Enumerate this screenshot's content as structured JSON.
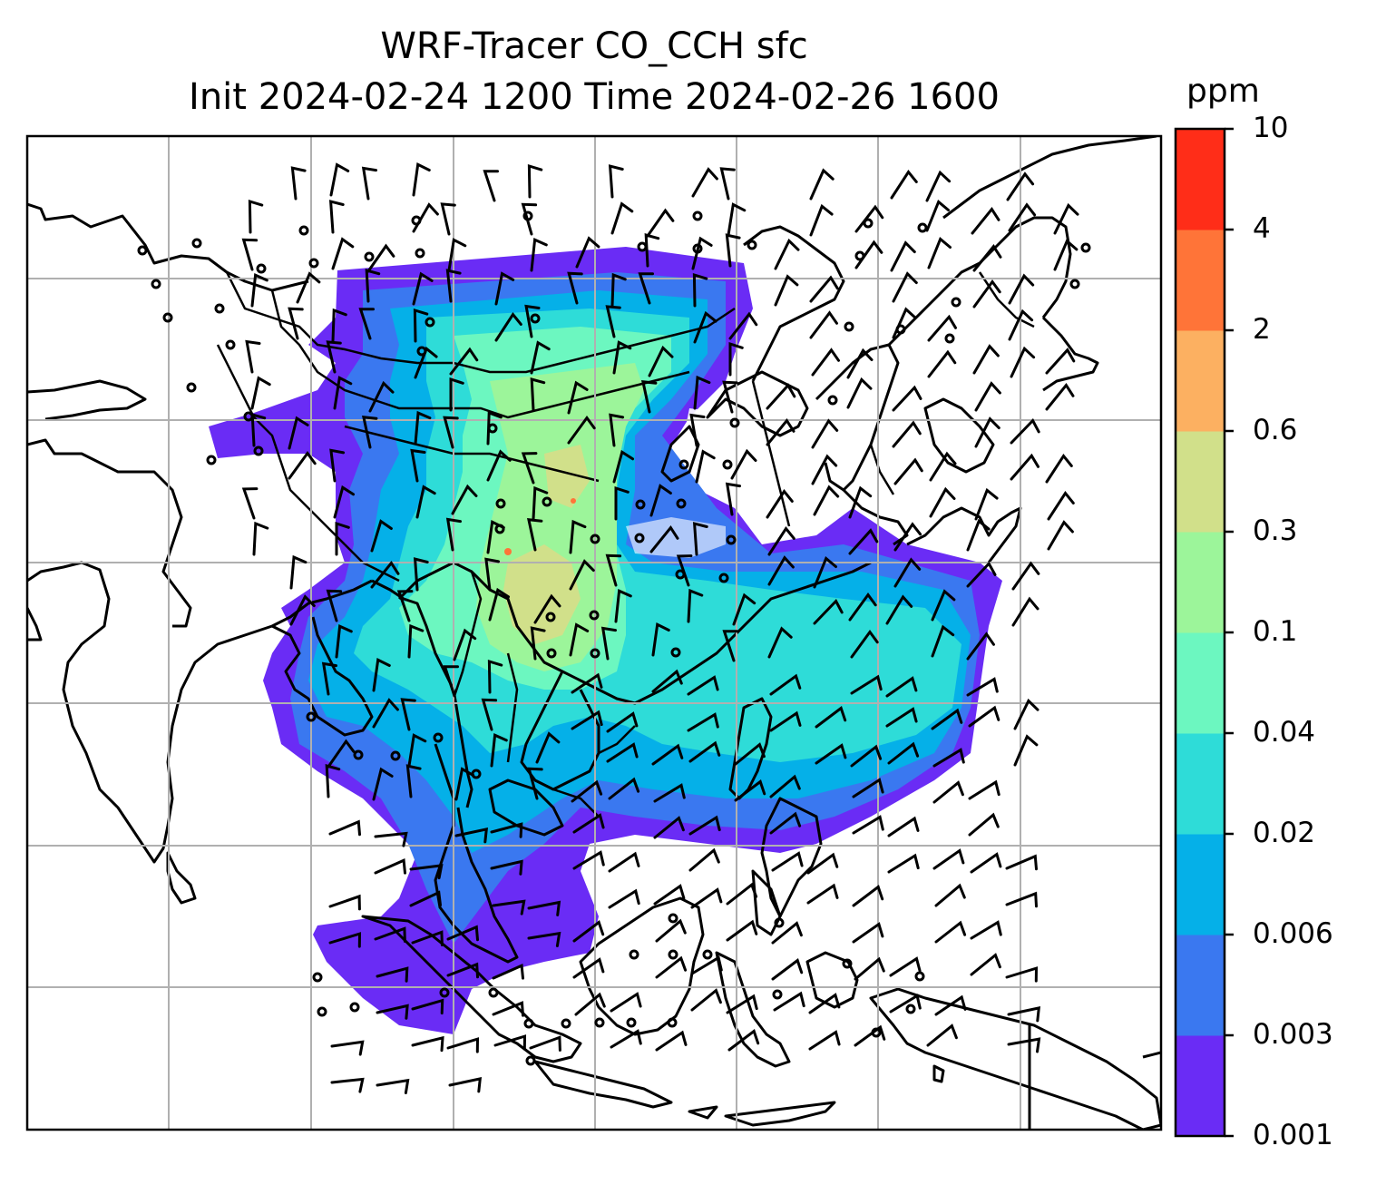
{
  "title": {
    "line1": "WRF-Tracer CO_CCH sfc",
    "line2": "Init 2024-02-24 1200 Time 2024-02-26 1600"
  },
  "colorbar": {
    "unit": "ppm",
    "levels": [
      "0.001",
      "0.003",
      "0.006",
      "0.02",
      "0.04",
      "0.1",
      "0.3",
      "0.6",
      "2",
      "4",
      "10"
    ],
    "colors": [
      "#6a2cf5",
      "#3a78f0",
      "#05b0e8",
      "#2edcd8",
      "#6cf7c0",
      "#9cf59a",
      "#d1e08a",
      "#fcb061",
      "#ff7438",
      "#ff2d18"
    ]
  },
  "map": {
    "domain": "Southeast and East Asia",
    "field": "CO_CCH surface concentration",
    "overlay": "wind barbs and calm circles"
  }
}
